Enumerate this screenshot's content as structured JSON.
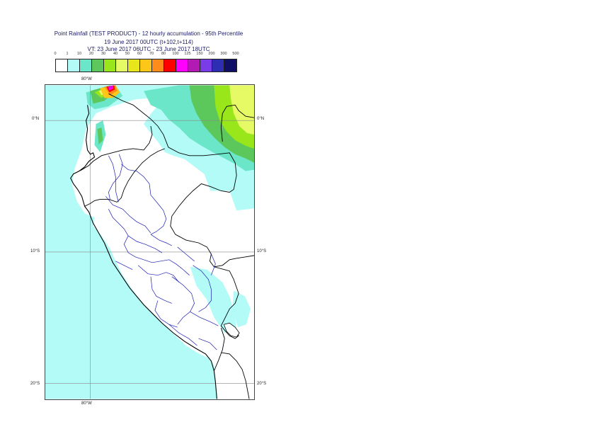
{
  "title": {
    "line1": "Point Rainfall (TEST PRODUCT) - 12 hourly accumulation - 95th Percentile",
    "line2": "19 June 2017 00UTC (t+102,t+114)",
    "line3": "VT: 23 June 2017 06UTC - 23 June 2017 18UTC"
  },
  "legend": {
    "thresholds": [
      "0",
      "1",
      "10",
      "20",
      "30",
      "40",
      "50",
      "60",
      "70",
      "80",
      "100",
      "125",
      "150",
      "200",
      "300",
      "500"
    ],
    "colors": [
      "#ffffff",
      "#b3fbf7",
      "#6be6c8",
      "#5cc85c",
      "#99e61a",
      "#e6fa66",
      "#e6e61a",
      "#ffc61a",
      "#ff8c1a",
      "#ff0000",
      "#ff00ff",
      "#b31ab3",
      "#7a3ce6",
      "#2e2eb3",
      "#0f0f66"
    ]
  },
  "colors": {
    "coast": "#000000",
    "border": "#000000",
    "admin": "#1a1ab3",
    "grid": "#888888"
  },
  "grid": {
    "lon_top": "80°W",
    "lon_bottom": "80°W",
    "lat_0_left": "0°N",
    "lat_0_right": "0°N",
    "lat_10_left": "10°S",
    "lat_10_right": "10°S",
    "lat_20_left": "20°S",
    "lat_20_right": "20°S"
  }
}
